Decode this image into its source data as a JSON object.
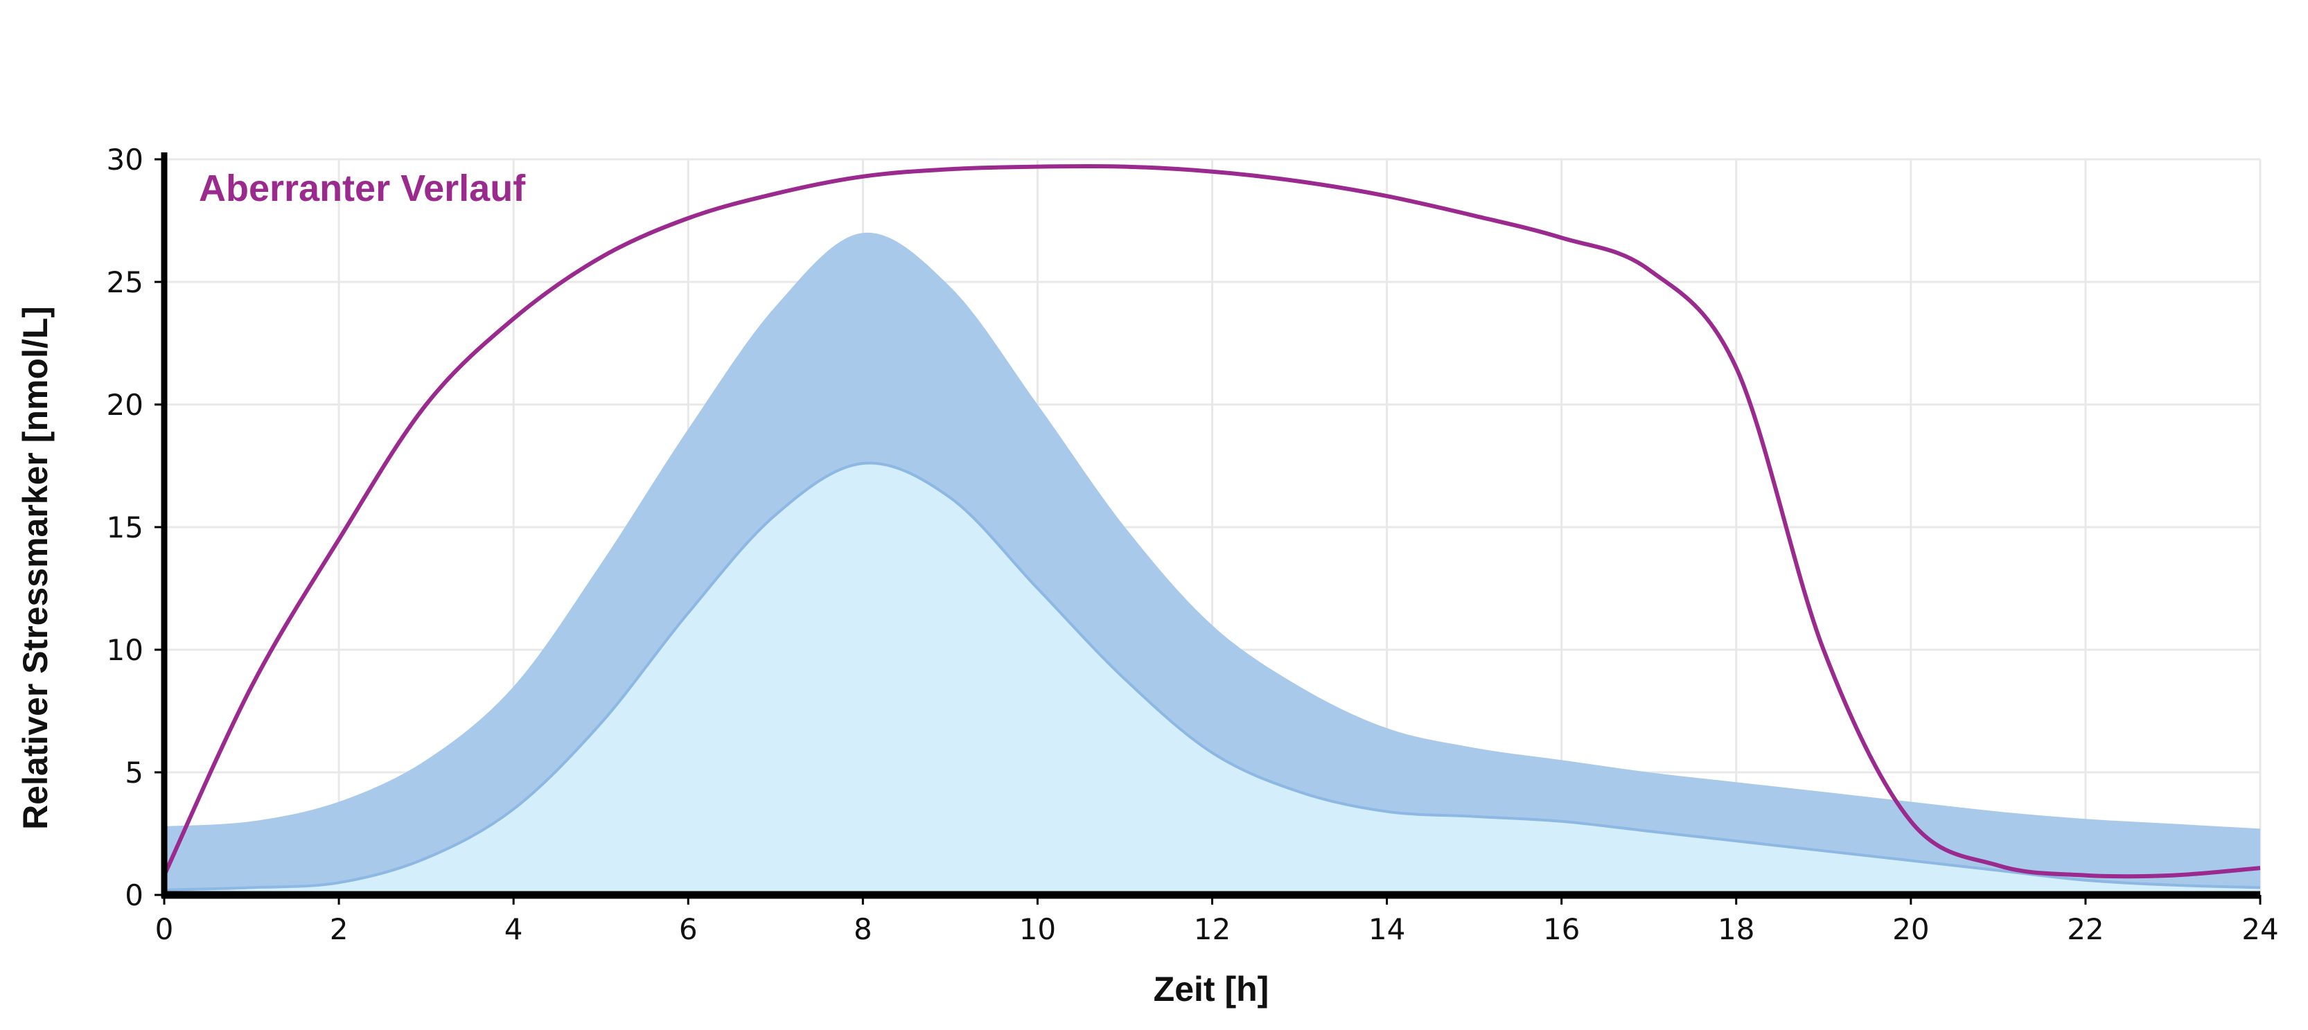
{
  "chart_data": {
    "type": "area",
    "xlabel": "Zeit [h]",
    "ylabel": "Relativer Stressmarker [nmol/L]",
    "xlim": [
      0,
      24
    ],
    "ylim": [
      0,
      30
    ],
    "xticks": [
      0,
      2,
      4,
      6,
      8,
      10,
      12,
      14,
      16,
      18,
      20,
      22,
      24
    ],
    "yticks": [
      0,
      5,
      10,
      15,
      20,
      25,
      30
    ],
    "grid": true,
    "annotation": "Aberranter Verlauf",
    "colors": {
      "aberrant_line": "#9B2A8F",
      "band_fill": "#A8C9EA",
      "lower_fill": "#D5EEFB",
      "lower_line": "#8DB8E4",
      "axis": "#000000",
      "grid": "#E8E8E8"
    },
    "x": [
      0,
      1,
      2,
      3,
      4,
      5,
      6,
      7,
      8,
      9,
      10,
      11,
      12,
      13,
      14,
      15,
      16,
      17,
      18,
      19,
      20,
      21,
      22,
      23,
      24
    ],
    "series": [
      {
        "role": "band-upper",
        "values": [
          2.8,
          3.0,
          3.8,
          5.5,
          8.5,
          13.5,
          19.0,
          24.0,
          27.0,
          24.8,
          20.0,
          15.0,
          11.0,
          8.5,
          6.8,
          6.0,
          5.5,
          5.0,
          4.6,
          4.2,
          3.8,
          3.4,
          3.1,
          2.9,
          2.7
        ]
      },
      {
        "role": "band-lower",
        "values": [
          0.2,
          0.3,
          0.5,
          1.5,
          3.5,
          7.0,
          11.5,
          15.5,
          17.6,
          16.2,
          12.5,
          8.8,
          5.8,
          4.2,
          3.4,
          3.2,
          3.0,
          2.6,
          2.2,
          1.8,
          1.4,
          1.0,
          0.6,
          0.4,
          0.3
        ]
      },
      {
        "role": "aberrant",
        "values": [
          0.8,
          8.5,
          14.5,
          20.0,
          23.5,
          26.0,
          27.6,
          28.6,
          29.3,
          29.6,
          29.7,
          29.7,
          29.5,
          29.1,
          28.5,
          27.7,
          26.8,
          25.5,
          21.5,
          10.0,
          3.0,
          1.2,
          0.8,
          0.8,
          1.1
        ]
      }
    ]
  }
}
